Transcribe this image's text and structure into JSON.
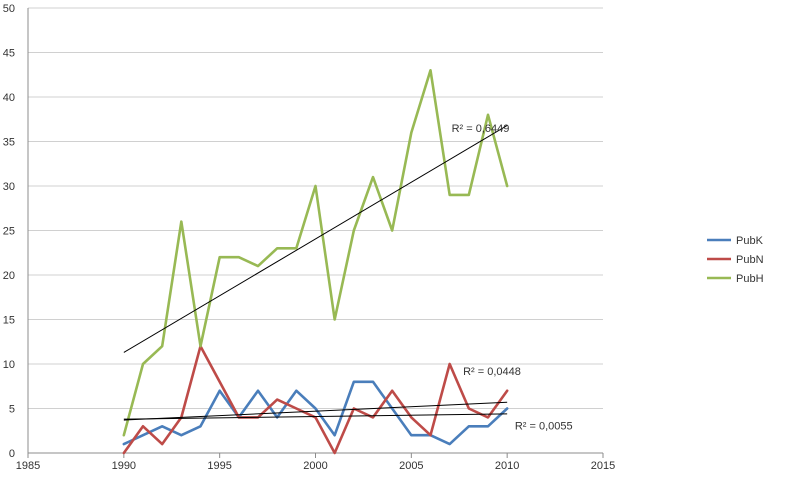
{
  "chart_data": {
    "type": "line",
    "title": "",
    "xlabel": "",
    "ylabel": "",
    "xlim": [
      1985,
      2015
    ],
    "ylim": [
      0,
      50
    ],
    "x_ticks": [
      "1985",
      "1990",
      "1995",
      "2000",
      "2005",
      "2010",
      "2015"
    ],
    "y_ticks": [
      "0",
      "5",
      "10",
      "15",
      "20",
      "25",
      "30",
      "35",
      "40",
      "45",
      "50"
    ],
    "grid": "horizontal",
    "legend_position": "right",
    "x": [
      1990,
      1991,
      1992,
      1993,
      1994,
      1995,
      1996,
      1997,
      1998,
      1999,
      2000,
      2001,
      2002,
      2003,
      2004,
      2005,
      2006,
      2007,
      2008,
      2009,
      2010
    ],
    "series": [
      {
        "name": "PubK",
        "color": "#4a7ebb",
        "values": [
          1,
          2,
          3,
          2,
          3,
          7,
          4,
          7,
          4,
          7,
          5,
          2,
          8,
          8,
          5,
          2,
          2,
          1,
          3,
          3,
          5
        ]
      },
      {
        "name": "PubN",
        "color": "#be4b48",
        "values": [
          0,
          3,
          1,
          4,
          12,
          8,
          4,
          4,
          6,
          5,
          4,
          0,
          5,
          4,
          7,
          4,
          2,
          10,
          5,
          4,
          7
        ]
      },
      {
        "name": "PubH",
        "color": "#98b954",
        "values": [
          2,
          10,
          12,
          26,
          12,
          22,
          22,
          21,
          23,
          23,
          30,
          15,
          25,
          31,
          25,
          36,
          43,
          29,
          29,
          38,
          30
        ]
      }
    ],
    "trendlines": [
      {
        "series": "PubH",
        "start": [
          1990,
          11.3
        ],
        "end": [
          2010,
          36.8
        ],
        "r2_label": "R² = 0,6449",
        "label_at": [
          2007.1,
          36.5
        ]
      },
      {
        "series": "PubN",
        "start": [
          1990,
          3.7
        ],
        "end": [
          2010,
          5.7
        ],
        "r2_label": "R² = 0,0448",
        "label_at": [
          2007.7,
          9.2
        ]
      },
      {
        "series": "PubK",
        "start": [
          1990,
          3.8
        ],
        "end": [
          2010,
          4.4
        ],
        "r2_label": "R² = 0,0055",
        "label_at": [
          2010.4,
          3.1
        ]
      }
    ]
  }
}
